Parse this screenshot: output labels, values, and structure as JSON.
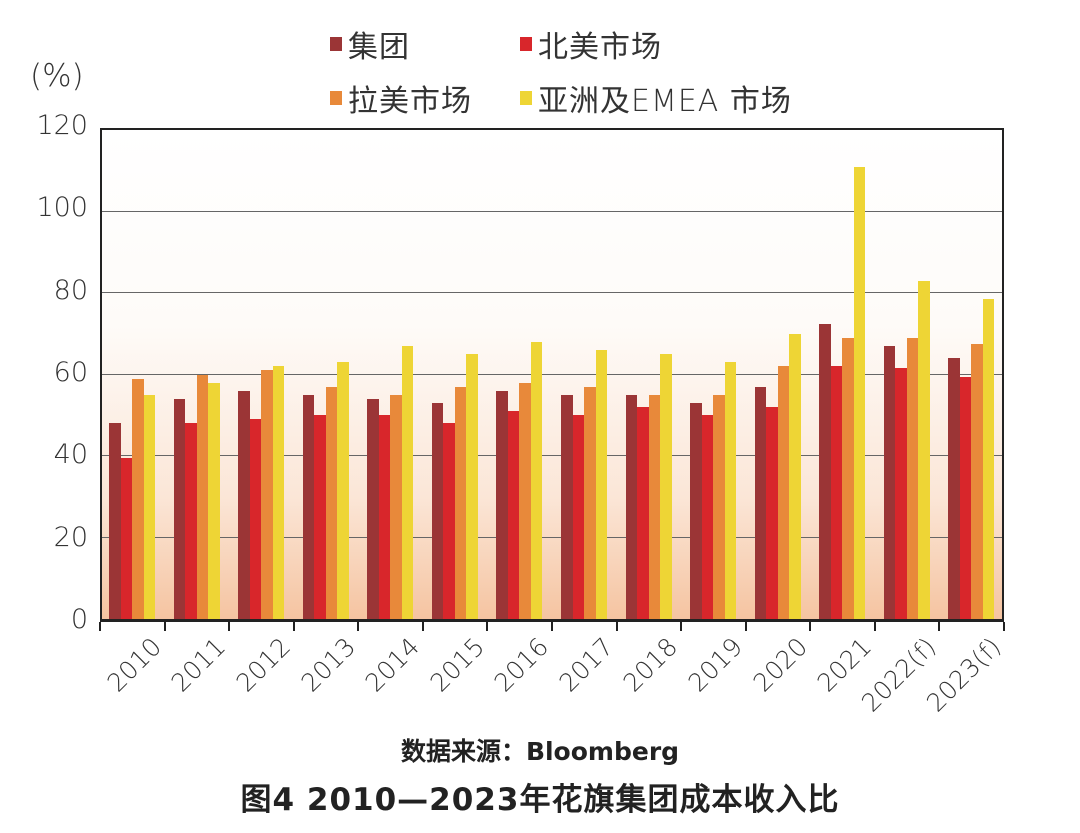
{
  "chart_data": {
    "type": "bar",
    "title": "图4 2010—2023年花旗集团成本收入比",
    "source": "数据来源：Bloomberg",
    "xlabel": "",
    "ylabel": "(%)",
    "ylim": [
      0,
      120
    ],
    "yticks": [
      0,
      20,
      40,
      60,
      80,
      100,
      120
    ],
    "grid": true,
    "legend_position": "top",
    "categories": [
      "2010",
      "2011",
      "2012",
      "2013",
      "2014",
      "2015",
      "2016",
      "2017",
      "2018",
      "2019",
      "2020",
      "2021",
      "2022(f)",
      "2023(f)"
    ],
    "series": [
      {
        "name": "集团",
        "color": "#9b3536",
        "values": [
          48,
          54,
          56,
          55,
          54,
          53,
          56,
          55,
          55,
          53,
          57,
          72.5,
          67,
          64
        ]
      },
      {
        "name": "北美市场",
        "color": "#d8262b",
        "values": [
          39.5,
          48,
          49,
          50,
          50,
          48,
          51,
          50,
          52,
          50,
          52,
          62,
          61.5,
          59.5
        ]
      },
      {
        "name": "拉美市场",
        "color": "#e8893a",
        "values": [
          59,
          60,
          61,
          57,
          55,
          57,
          58,
          57,
          55,
          55,
          62,
          69,
          69,
          67.5
        ]
      },
      {
        "name": "亚洲及EMEA市场",
        "color": "#eed535",
        "values": [
          55,
          58,
          62,
          63,
          67,
          65,
          68,
          66,
          65,
          63,
          70,
          111,
          83,
          78.5
        ]
      }
    ]
  },
  "legend": {
    "items": [
      {
        "label": "集团",
        "color": "#9b3536"
      },
      {
        "label": "北美市场",
        "color": "#d8262b"
      },
      {
        "label": "拉美市场",
        "color": "#e8893a"
      },
      {
        "label": "亚洲及EMEA 市场",
        "color": "#eed535"
      }
    ]
  },
  "axis": {
    "unit": "(%)",
    "y_ticks": [
      "0",
      "20",
      "40",
      "60",
      "80",
      "100",
      "120"
    ]
  },
  "footer": {
    "source": "数据来源：Bloomberg",
    "caption": "图4  2010—2023年花旗集团成本收入比"
  }
}
